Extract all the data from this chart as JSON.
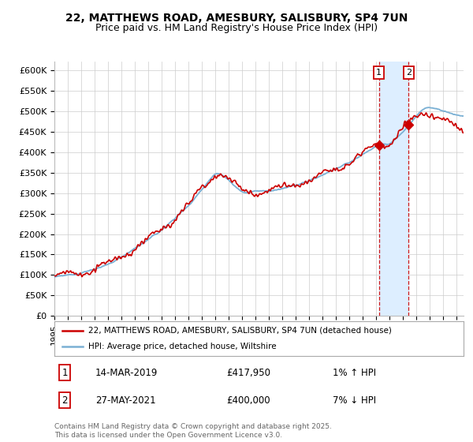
{
  "title_line1": "22, MATTHEWS ROAD, AMESBURY, SALISBURY, SP4 7UN",
  "title_line2": "Price paid vs. HM Land Registry's House Price Index (HPI)",
  "ylim": [
    0,
    620000
  ],
  "ytick_values": [
    0,
    50000,
    100000,
    150000,
    200000,
    250000,
    300000,
    350000,
    400000,
    450000,
    500000,
    550000,
    600000
  ],
  "ytick_labels": [
    "£0",
    "£50K",
    "£100K",
    "£150K",
    "£200K",
    "£250K",
    "£300K",
    "£350K",
    "£400K",
    "£450K",
    "£500K",
    "£550K",
    "£600K"
  ],
  "hpi_color": "#7ab0d4",
  "price_color": "#cc0000",
  "marker1_year": 2019.19,
  "marker2_year": 2021.41,
  "shade_color": "#ddeeff",
  "vline_color_1": "#cc0000",
  "vline_color_2": "#cc0000",
  "legend_label1": "22, MATTHEWS ROAD, AMESBURY, SALISBURY, SP4 7UN (detached house)",
  "legend_label2": "HPI: Average price, detached house, Wiltshire",
  "sale1_date": "14-MAR-2019",
  "sale1_price": "£417,950",
  "sale1_hpi": "1% ↑ HPI",
  "sale2_date": "27-MAY-2021",
  "sale2_price": "£400,000",
  "sale2_hpi": "7% ↓ HPI",
  "footer": "Contains HM Land Registry data © Crown copyright and database right 2025.\nThis data is licensed under the Open Government Licence v3.0.",
  "bg_color": "#ffffff",
  "grid_color": "#cccccc",
  "title_fontsize": 10,
  "subtitle_fontsize": 9,
  "xlim_left": 1995,
  "xlim_right": 2025.5
}
